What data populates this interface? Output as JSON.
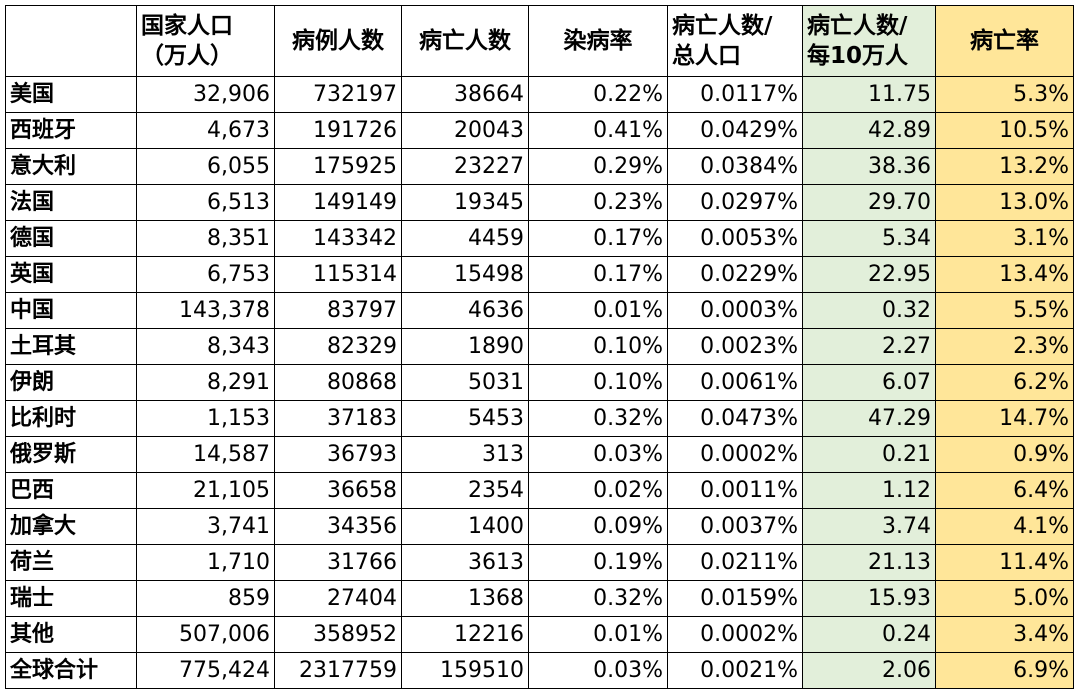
{
  "headers": {
    "country": "",
    "population": "国家人口（万人）",
    "cases": "病例人数",
    "deaths": "病亡人数",
    "infection_rate": "染病率",
    "deaths_over_pop": "病亡人数/总人口",
    "deaths_per_100k": "病亡人数/每10万人",
    "fatality_rate": "病亡率"
  },
  "header_lines": {
    "population": [
      "国家人口",
      "（万人）"
    ],
    "deaths_over_pop": [
      "病亡人数/",
      "总人口"
    ],
    "deaths_per_100k": [
      "病亡人数/",
      "每10万人"
    ]
  },
  "rows": [
    {
      "country": "美国",
      "population": "32,906",
      "cases": "732197",
      "deaths": "38664",
      "infection_rate": "0.22%",
      "deaths_over_pop": "0.0117%",
      "deaths_per_100k": "11.75",
      "fatality_rate": "5.3%"
    },
    {
      "country": "西班牙",
      "population": "4,673",
      "cases": "191726",
      "deaths": "20043",
      "infection_rate": "0.41%",
      "deaths_over_pop": "0.0429%",
      "deaths_per_100k": "42.89",
      "fatality_rate": "10.5%"
    },
    {
      "country": "意大利",
      "population": "6,055",
      "cases": "175925",
      "deaths": "23227",
      "infection_rate": "0.29%",
      "deaths_over_pop": "0.0384%",
      "deaths_per_100k": "38.36",
      "fatality_rate": "13.2%"
    },
    {
      "country": "法国",
      "population": "6,513",
      "cases": "149149",
      "deaths": "19345",
      "infection_rate": "0.23%",
      "deaths_over_pop": "0.0297%",
      "deaths_per_100k": "29.70",
      "fatality_rate": "13.0%"
    },
    {
      "country": "德国",
      "population": "8,351",
      "cases": "143342",
      "deaths": "4459",
      "infection_rate": "0.17%",
      "deaths_over_pop": "0.0053%",
      "deaths_per_100k": "5.34",
      "fatality_rate": "3.1%"
    },
    {
      "country": "英国",
      "population": "6,753",
      "cases": "115314",
      "deaths": "15498",
      "infection_rate": "0.17%",
      "deaths_over_pop": "0.0229%",
      "deaths_per_100k": "22.95",
      "fatality_rate": "13.4%"
    },
    {
      "country": "中国",
      "population": "143,378",
      "cases": "83797",
      "deaths": "4636",
      "infection_rate": "0.01%",
      "deaths_over_pop": "0.0003%",
      "deaths_per_100k": "0.32",
      "fatality_rate": "5.5%"
    },
    {
      "country": "土耳其",
      "population": "8,343",
      "cases": "82329",
      "deaths": "1890",
      "infection_rate": "0.10%",
      "deaths_over_pop": "0.0023%",
      "deaths_per_100k": "2.27",
      "fatality_rate": "2.3%"
    },
    {
      "country": "伊朗",
      "population": "8,291",
      "cases": "80868",
      "deaths": "5031",
      "infection_rate": "0.10%",
      "deaths_over_pop": "0.0061%",
      "deaths_per_100k": "6.07",
      "fatality_rate": "6.2%"
    },
    {
      "country": "比利时",
      "population": "1,153",
      "cases": "37183",
      "deaths": "5453",
      "infection_rate": "0.32%",
      "deaths_over_pop": "0.0473%",
      "deaths_per_100k": "47.29",
      "fatality_rate": "14.7%"
    },
    {
      "country": "俄罗斯",
      "population": "14,587",
      "cases": "36793",
      "deaths": "313",
      "infection_rate": "0.03%",
      "deaths_over_pop": "0.0002%",
      "deaths_per_100k": "0.21",
      "fatality_rate": "0.9%"
    },
    {
      "country": "巴西",
      "population": "21,105",
      "cases": "36658",
      "deaths": "2354",
      "infection_rate": "0.02%",
      "deaths_over_pop": "0.0011%",
      "deaths_per_100k": "1.12",
      "fatality_rate": "6.4%"
    },
    {
      "country": "加拿大",
      "population": "3,741",
      "cases": "34356",
      "deaths": "1400",
      "infection_rate": "0.09%",
      "deaths_over_pop": "0.0037%",
      "deaths_per_100k": "3.74",
      "fatality_rate": "4.1%"
    },
    {
      "country": "荷兰",
      "population": "1,710",
      "cases": "31766",
      "deaths": "3613",
      "infection_rate": "0.19%",
      "deaths_over_pop": "0.0211%",
      "deaths_per_100k": "21.13",
      "fatality_rate": "11.4%"
    },
    {
      "country": "瑞士",
      "population": "859",
      "cases": "27404",
      "deaths": "1368",
      "infection_rate": "0.32%",
      "deaths_over_pop": "0.0159%",
      "deaths_per_100k": "15.93",
      "fatality_rate": "5.0%"
    },
    {
      "country": "其他",
      "population": "507,006",
      "cases": "358952",
      "deaths": "12216",
      "infection_rate": "0.01%",
      "deaths_over_pop": "0.0002%",
      "deaths_per_100k": "0.24",
      "fatality_rate": "3.4%"
    },
    {
      "country": "全球合计",
      "population": "775,424",
      "cases": "2317759",
      "deaths": "159510",
      "infection_rate": "0.03%",
      "deaths_over_pop": "0.0021%",
      "deaths_per_100k": "2.06",
      "fatality_rate": "6.9%"
    }
  ],
  "colors": {
    "deaths_per_100k_fill": "#e2efda",
    "fatality_rate_fill": "#ffe699",
    "border": "#000000"
  }
}
